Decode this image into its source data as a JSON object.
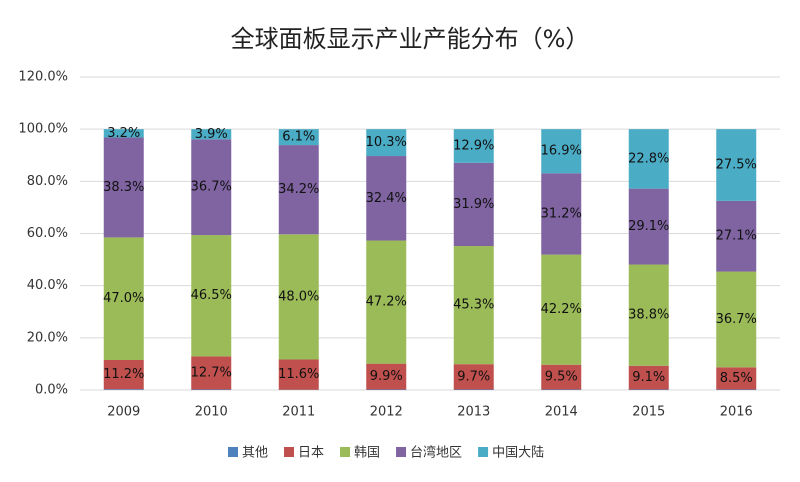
{
  "chart_data": {
    "type": "stacked_bar",
    "title": "全球面板显示产业产能分布（%）",
    "categories": [
      "2009",
      "2010",
      "2011",
      "2012",
      "2013",
      "2014",
      "2015",
      "2016"
    ],
    "series": [
      {
        "name": "其他",
        "color": "#4f81bd",
        "values": [
          0.3,
          0.2,
          0.1,
          0.2,
          0.2,
          0.2,
          0.2,
          0.2
        ]
      },
      {
        "name": "日本",
        "color": "#c0504d",
        "values": [
          11.2,
          12.7,
          11.6,
          9.9,
          9.7,
          9.5,
          9.1,
          8.5
        ],
        "value_labels": [
          "11.2%",
          "12.7%",
          "11.6%",
          "9.9%",
          "9.7%",
          "9.5%",
          "9.1%",
          "8.5%"
        ]
      },
      {
        "name": "韩国",
        "color": "#9bbb59",
        "values": [
          47.0,
          46.5,
          48.0,
          47.2,
          45.3,
          42.2,
          38.8,
          36.7
        ],
        "value_labels": [
          "47.0%",
          "46.5%",
          "48.0%",
          "47.2%",
          "45.3%",
          "42.2%",
          "38.8%",
          "36.7%"
        ]
      },
      {
        "name": "台湾地区",
        "color": "#8064a2",
        "values": [
          38.3,
          36.7,
          34.2,
          32.4,
          31.9,
          31.2,
          29.1,
          27.1
        ],
        "value_labels": [
          "38.3%",
          "36.7%",
          "34.2%",
          "32.4%",
          "31.9%",
          "31.2%",
          "29.1%",
          "27.1%"
        ]
      },
      {
        "name": "中国大陆",
        "color": "#4bacc6",
        "values": [
          3.2,
          3.9,
          6.1,
          10.3,
          12.9,
          16.9,
          22.8,
          27.5
        ],
        "value_labels": [
          "3.2%",
          "3.9%",
          "6.1%",
          "10.3%",
          "12.9%",
          "16.9%",
          "22.8%",
          "27.5%"
        ]
      }
    ],
    "ylim": [
      0,
      120
    ],
    "yticks": [
      {
        "value": 0,
        "label": "0.0%"
      },
      {
        "value": 20,
        "label": "20.0%"
      },
      {
        "value": 40,
        "label": "40.0%"
      },
      {
        "value": 60,
        "label": "60.0%"
      },
      {
        "value": 80,
        "label": "80.0%"
      },
      {
        "value": 100,
        "label": "100.0%"
      },
      {
        "value": 120,
        "label": "120.0%"
      }
    ],
    "grid": true,
    "legend": "bottom"
  }
}
